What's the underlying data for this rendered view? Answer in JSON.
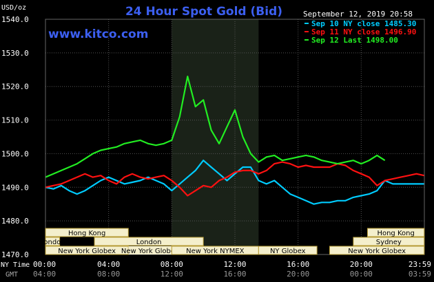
{
  "chart_data": {
    "type": "line",
    "title": "24 Hour Spot Gold (Bid)",
    "watermark": "www.kitco.com",
    "ylabel": "USD/oz",
    "ylim": [
      1470,
      1540
    ],
    "yticks": [
      "1540.0",
      "1530.0",
      "1520.0",
      "1510.0",
      "1500.0",
      "1490.0",
      "1480.0",
      "1470.0"
    ],
    "timestamp": "September 12, 2019 20:58",
    "x_hours": [
      0,
      24
    ],
    "x_row_labels": {
      "ny": "NY Time",
      "gmt": "GMT"
    },
    "x_ticks_ny": [
      "00:00",
      "04:00",
      "08:00",
      "12:00",
      "16:00",
      "20:00",
      "23:59"
    ],
    "x_ticks_gmt": [
      "04:00",
      "08:00",
      "12:00",
      "16:00",
      "20:00",
      "00:00",
      "03:59"
    ],
    "shaded_session_hours": [
      8,
      13.5
    ],
    "colors": {
      "background": "#000000",
      "grid": "#555555",
      "title": "#3c5ff0",
      "watermark": "#3c5ff0",
      "text": "#ffffff",
      "session_fill": "#1a2218",
      "market_bar": "#f4efcc",
      "market_border": "#b59a33"
    },
    "series": [
      {
        "name": "Sep 10 NY close",
        "legend": "Sep 10 NY close 1485.30",
        "color": "#00ccff",
        "points": [
          [
            0,
            1490
          ],
          [
            0.5,
            1489.5
          ],
          [
            1,
            1490.5
          ],
          [
            1.5,
            1489
          ],
          [
            2,
            1488
          ],
          [
            2.5,
            1489
          ],
          [
            3,
            1490.5
          ],
          [
            3.5,
            1492
          ],
          [
            4,
            1493
          ],
          [
            4.5,
            1492
          ],
          [
            5,
            1491
          ],
          [
            5.5,
            1491.5
          ],
          [
            6,
            1492
          ],
          [
            6.5,
            1493
          ],
          [
            7,
            1492
          ],
          [
            7.5,
            1491
          ],
          [
            8,
            1489
          ],
          [
            8.5,
            1491
          ],
          [
            9,
            1493
          ],
          [
            9.5,
            1495
          ],
          [
            10,
            1498
          ],
          [
            10.5,
            1496
          ],
          [
            11,
            1494
          ],
          [
            11.5,
            1492
          ],
          [
            12,
            1494
          ],
          [
            12.5,
            1496
          ],
          [
            13,
            1496
          ],
          [
            13.5,
            1492
          ],
          [
            14,
            1491
          ],
          [
            14.5,
            1492
          ],
          [
            15,
            1490
          ],
          [
            15.5,
            1488
          ],
          [
            16,
            1487
          ],
          [
            16.5,
            1486
          ],
          [
            17,
            1485
          ],
          [
            17.5,
            1485.5
          ],
          [
            18,
            1485.5
          ],
          [
            18.5,
            1486
          ],
          [
            19,
            1486
          ],
          [
            19.5,
            1487
          ],
          [
            20,
            1487.5
          ],
          [
            20.5,
            1488
          ],
          [
            21,
            1489
          ],
          [
            21.5,
            1492
          ],
          [
            22,
            1491
          ],
          [
            22.5,
            1491
          ],
          [
            23,
            1491
          ],
          [
            23.99,
            1491
          ]
        ]
      },
      {
        "name": "Sep 11 NY close",
        "legend": "Sep 11 NY close 1496.90",
        "color": "#ff1111",
        "points": [
          [
            0,
            1490
          ],
          [
            0.5,
            1490.5
          ],
          [
            1,
            1491
          ],
          [
            1.5,
            1492
          ],
          [
            2,
            1493
          ],
          [
            2.5,
            1494
          ],
          [
            3,
            1493
          ],
          [
            3.5,
            1493.5
          ],
          [
            4,
            1492
          ],
          [
            4.5,
            1491
          ],
          [
            5,
            1493
          ],
          [
            5.5,
            1494
          ],
          [
            6,
            1493
          ],
          [
            6.5,
            1492.5
          ],
          [
            7,
            1493
          ],
          [
            7.5,
            1493.5
          ],
          [
            8,
            1492
          ],
          [
            8.5,
            1490
          ],
          [
            9,
            1487.5
          ],
          [
            9.5,
            1489
          ],
          [
            10,
            1490.5
          ],
          [
            10.5,
            1490
          ],
          [
            11,
            1492
          ],
          [
            11.5,
            1493
          ],
          [
            12,
            1494.5
          ],
          [
            12.5,
            1495
          ],
          [
            13,
            1495
          ],
          [
            13.5,
            1494
          ],
          [
            14,
            1495
          ],
          [
            14.5,
            1497
          ],
          [
            15,
            1497.5
          ],
          [
            15.5,
            1497
          ],
          [
            16,
            1496
          ],
          [
            16.5,
            1496.5
          ],
          [
            17,
            1496
          ],
          [
            17.5,
            1496
          ],
          [
            18,
            1496
          ],
          [
            18.5,
            1497
          ],
          [
            19,
            1496.5
          ],
          [
            19.5,
            1495
          ],
          [
            20,
            1494
          ],
          [
            20.5,
            1493
          ],
          [
            21,
            1490.5
          ],
          [
            21.5,
            1492
          ],
          [
            22,
            1492.5
          ],
          [
            22.5,
            1493
          ],
          [
            23,
            1493.5
          ],
          [
            23.5,
            1494
          ],
          [
            23.99,
            1493.5
          ]
        ]
      },
      {
        "name": "Sep 12 Last",
        "legend": "Sep 12 Last 1498.00",
        "color": "#22ee22",
        "points": [
          [
            0,
            1493
          ],
          [
            0.5,
            1494
          ],
          [
            1,
            1495
          ],
          [
            1.5,
            1496
          ],
          [
            2,
            1497
          ],
          [
            2.5,
            1498.5
          ],
          [
            3,
            1500
          ],
          [
            3.5,
            1501
          ],
          [
            4,
            1501.5
          ],
          [
            4.5,
            1502
          ],
          [
            5,
            1503
          ],
          [
            5.5,
            1503.5
          ],
          [
            6,
            1504
          ],
          [
            6.5,
            1503
          ],
          [
            7,
            1502.5
          ],
          [
            7.5,
            1503
          ],
          [
            8,
            1504
          ],
          [
            8.5,
            1511
          ],
          [
            9,
            1523
          ],
          [
            9.5,
            1514
          ],
          [
            10,
            1516
          ],
          [
            10.5,
            1507
          ],
          [
            11,
            1503
          ],
          [
            11.5,
            1508
          ],
          [
            12,
            1513
          ],
          [
            12.5,
            1505
          ],
          [
            13,
            1500
          ],
          [
            13.5,
            1497.5
          ],
          [
            14,
            1499
          ],
          [
            14.5,
            1499.5
          ],
          [
            15,
            1498
          ],
          [
            15.5,
            1498.5
          ],
          [
            16,
            1499
          ],
          [
            16.5,
            1499.5
          ],
          [
            17,
            1499
          ],
          [
            17.5,
            1498
          ],
          [
            18,
            1497.5
          ],
          [
            18.5,
            1497
          ],
          [
            19,
            1497.5
          ],
          [
            19.5,
            1498
          ],
          [
            20,
            1497
          ],
          [
            20.5,
            1498
          ],
          [
            21,
            1499.5
          ],
          [
            21.5,
            1498
          ]
        ]
      }
    ],
    "markets": [
      {
        "name": "Hong Kong",
        "start": 0,
        "end": 5.25,
        "row": 0,
        "bordered": true
      },
      {
        "name": "London",
        "start": 0,
        "end": 0.9,
        "row": 1,
        "bordered": true
      },
      {
        "name": "London",
        "start": 3.1,
        "end": 10,
        "row": 1,
        "bordered": true
      },
      {
        "name": "New York Globex",
        "start": 0,
        "end": 5.25,
        "row": 2,
        "bordered": true
      },
      {
        "name": "New York Globex",
        "start": 5.25,
        "end": 8,
        "row": 2,
        "bordered": false
      },
      {
        "name": "New York NYMEX",
        "start": 8,
        "end": 13.5,
        "row": 2,
        "bordered": true
      },
      {
        "name": "NY Globex",
        "start": 13.5,
        "end": 17.2,
        "row": 2,
        "bordered": true
      },
      {
        "name": "Hong Kong",
        "start": 20.4,
        "end": 23.99,
        "row": 0,
        "bordered": true
      },
      {
        "name": "Sydney",
        "start": 19.5,
        "end": 23.99,
        "row": 1,
        "bordered": true
      },
      {
        "name": "New York Globex",
        "start": 18,
        "end": 23.99,
        "row": 2,
        "bordered": true
      }
    ]
  }
}
